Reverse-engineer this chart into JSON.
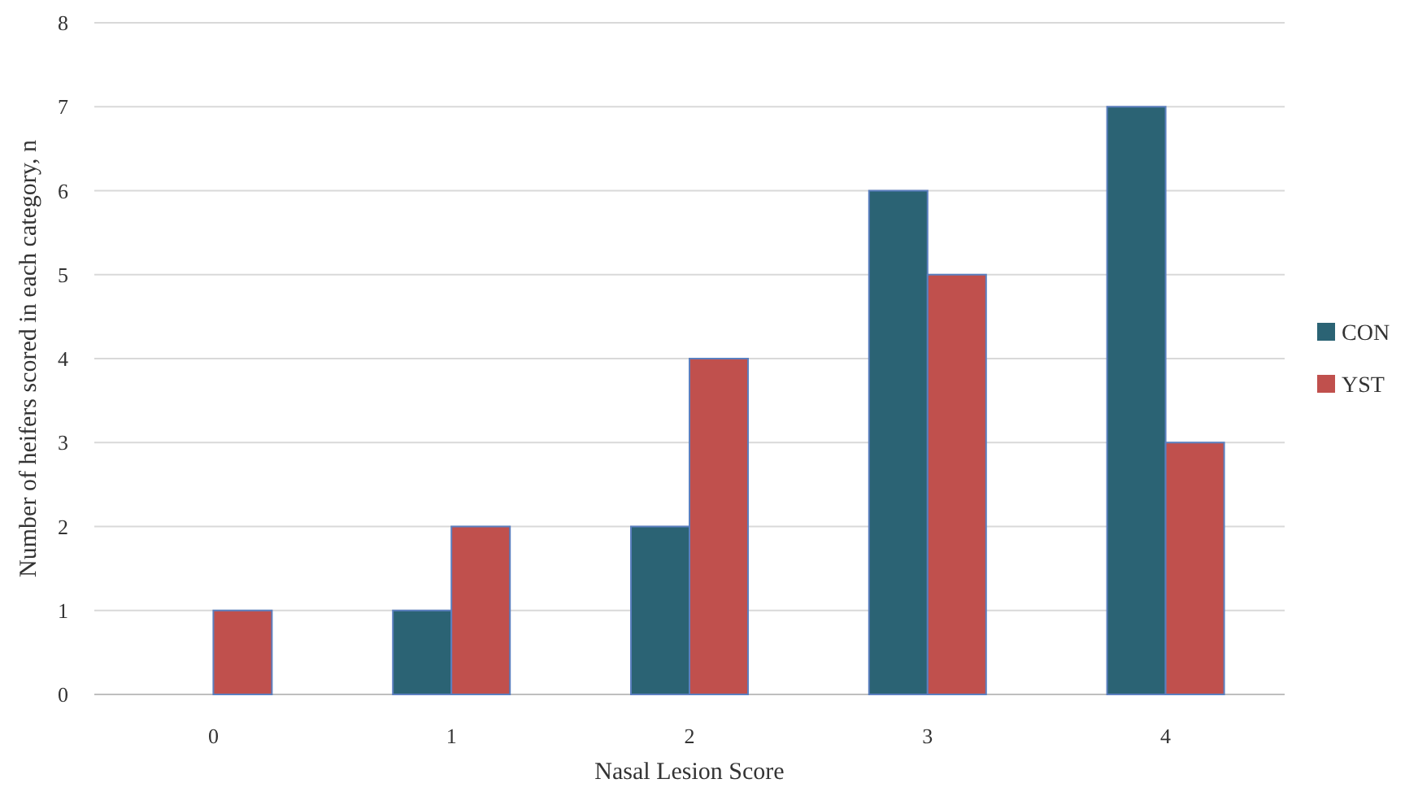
{
  "chart_data": {
    "type": "bar",
    "xlabel": "Nasal Lesion Score",
    "ylabel": "Number of heifers scored in each category, n",
    "categories": [
      "0",
      "1",
      "2",
      "3",
      "4"
    ],
    "series": [
      {
        "name": "CON",
        "color": "#2b6374",
        "values": [
          0,
          1,
          2,
          6,
          7
        ]
      },
      {
        "name": "YST",
        "color": "#c0504d",
        "values": [
          1,
          2,
          4,
          5,
          3
        ]
      }
    ],
    "ylim": [
      0,
      8
    ],
    "yticks": [
      0,
      1,
      2,
      3,
      4,
      5,
      6,
      7,
      8
    ],
    "grid": "y",
    "legend": "right"
  }
}
